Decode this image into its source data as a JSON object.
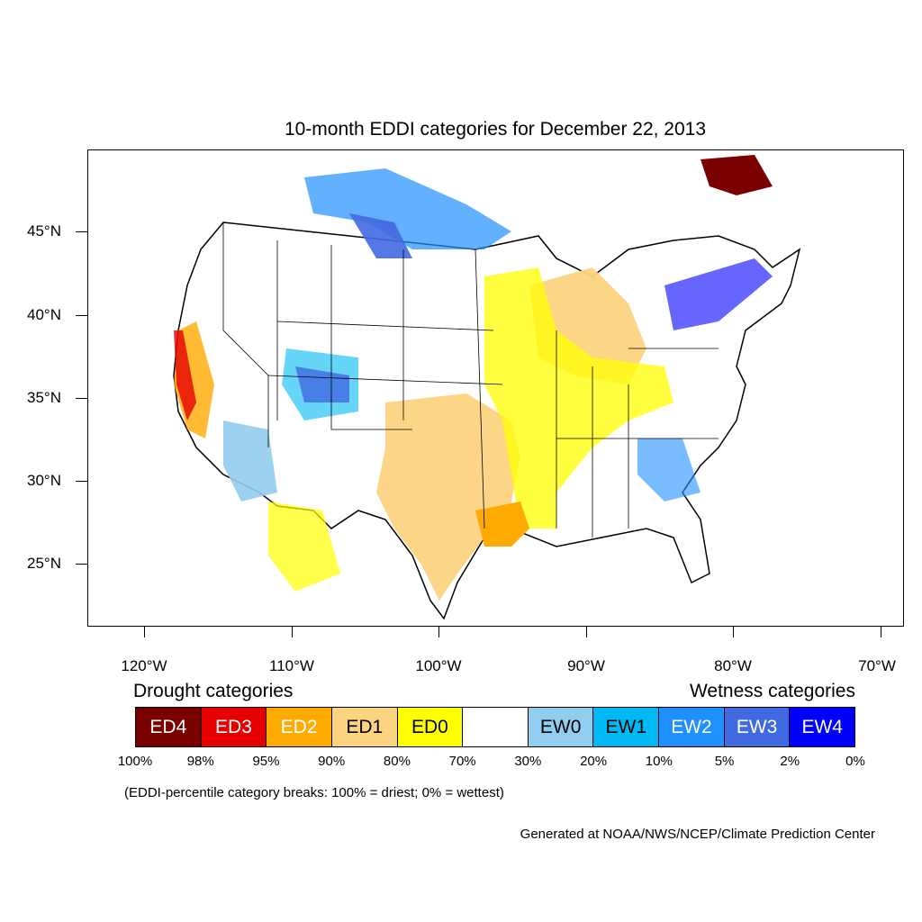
{
  "title": "10-month EDDI categories for December 22, 2013",
  "lat_labels": [
    "45°N",
    "40°N",
    "35°N",
    "30°N",
    "25°N"
  ],
  "lon_labels": [
    "120°W",
    "110°W",
    "100°W",
    "90°W",
    "80°W",
    "70°W"
  ],
  "legend": {
    "drought_heading": "Drought categories",
    "wetness_heading": "Wetness categories",
    "categories": [
      {
        "label": "ED4",
        "color": "#7a0000",
        "text_color": "#ffffff"
      },
      {
        "label": "ED3",
        "color": "#e60000",
        "text_color": "#ffffff"
      },
      {
        "label": "ED2",
        "color": "#ffaa00",
        "text_color": "#ffffff"
      },
      {
        "label": "ED1",
        "color": "#fcd37f",
        "text_color": "#000000"
      },
      {
        "label": "ED0",
        "color": "#ffff00",
        "text_color": "#000000"
      },
      {
        "label": "",
        "color": "#ffffff",
        "text_color": "#000000"
      },
      {
        "label": "EW0",
        "color": "#91cdee",
        "text_color": "#000000"
      },
      {
        "label": "EW1",
        "color": "#00b9f4",
        "text_color": "#000000"
      },
      {
        "label": "EW2",
        "color": "#1e90ff",
        "text_color": "#ffffff"
      },
      {
        "label": "EW3",
        "color": "#4169e1",
        "text_color": "#ffffff"
      },
      {
        "label": "EW4",
        "color": "#0000ff",
        "text_color": "#ffffff"
      }
    ],
    "percent_breaks": [
      "100%",
      "98%",
      "95%",
      "90%",
      "80%",
      "70%",
      "30%",
      "20%",
      "10%",
      "5%",
      "2%",
      "0%"
    ]
  },
  "note": "(EDDI-percentile category breaks: 100% = driest; 0% = wettest)",
  "credit": "Generated at NOAA/NWS/NCEP/Climate Prediction Center"
}
